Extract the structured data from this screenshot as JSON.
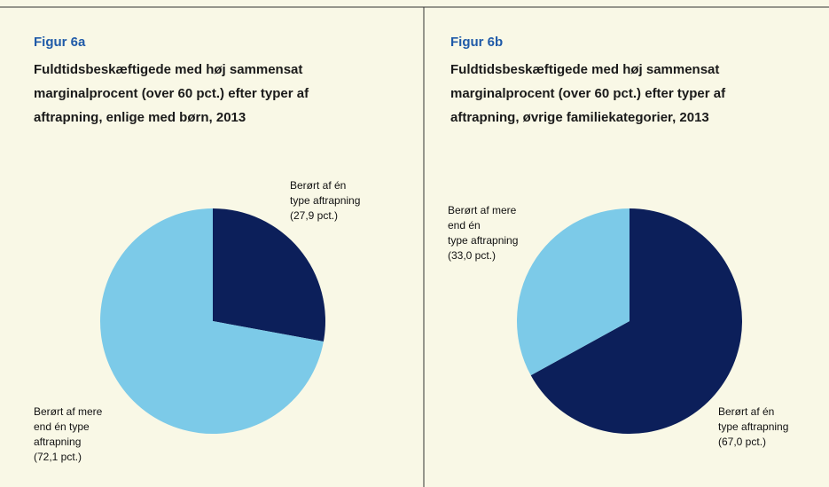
{
  "chart_data": [
    {
      "type": "pie",
      "title": "Figur 6a",
      "subtitle": [
        "Fuldtidsbeskæftigede med høj sammensat",
        "marginalprocent (over 60 pct.) efter typer af",
        "aftrapning, enlige med børn, 2013"
      ],
      "categories": [
        [
          "Berørt af én",
          "type aftrapning"
        ],
        [
          "Berørt af mere",
          "end én type",
          "aftrapning"
        ]
      ],
      "values": [
        27.9,
        72.1
      ],
      "value_labels": [
        "(27,9 pct.)",
        "(72,1 pct.)"
      ],
      "colors": [
        "#0c1f5a",
        "#7ccae8"
      ]
    },
    {
      "type": "pie",
      "title": "Figur 6b",
      "subtitle": [
        "Fuldtidsbeskæftigede med høj sammensat",
        "marginalprocent (over 60 pct.) efter typer af",
        "aftrapning, øvrige familiekategorier, 2013"
      ],
      "categories": [
        [
          "Berørt af én",
          "type aftrapning"
        ],
        [
          "Berørt af mere",
          "end én",
          "type aftrapning"
        ]
      ],
      "values": [
        67.0,
        33.0
      ],
      "value_labels": [
        "(67,0 pct.)",
        "(33,0 pct.)"
      ],
      "colors": [
        "#0c1f5a",
        "#7ccae8"
      ]
    }
  ]
}
